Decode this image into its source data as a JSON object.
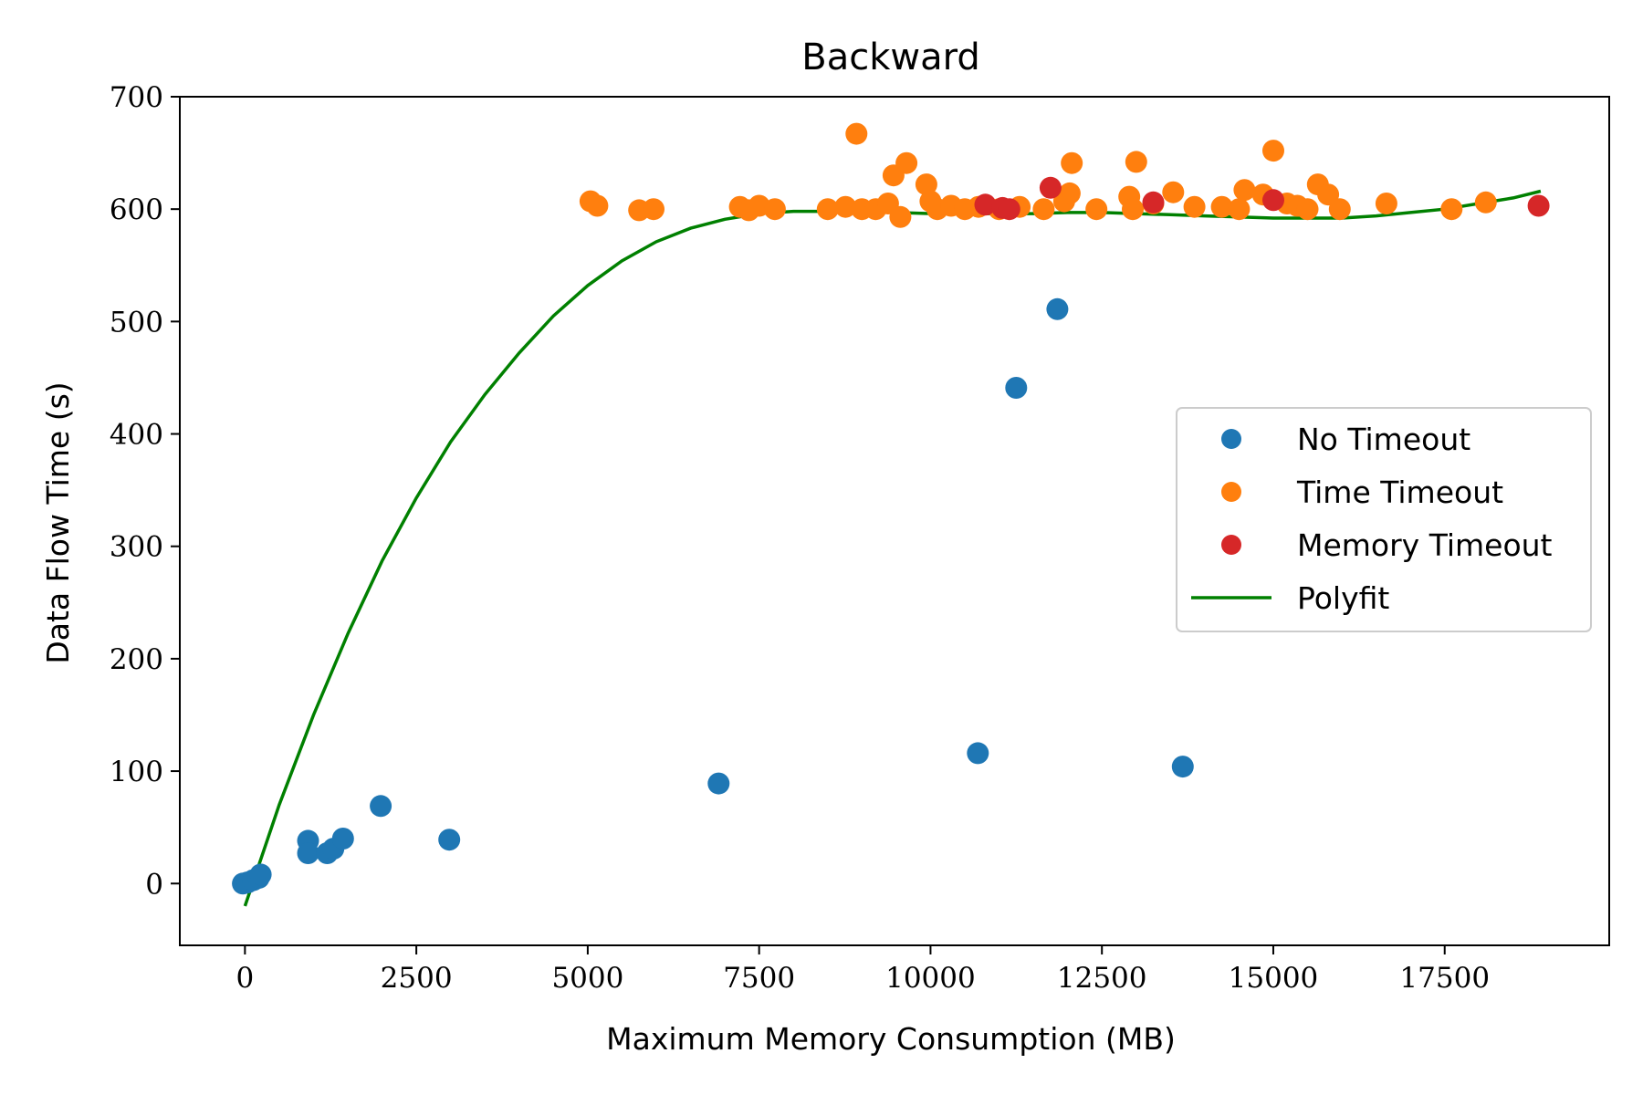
{
  "chart_data": {
    "type": "scatter",
    "title": "Backward",
    "xlabel": "Maximum Memory Consumption (MB)",
    "ylabel": "Data Flow Time (s)",
    "xlim": [
      -950,
      19900
    ],
    "ylim": [
      -55,
      700
    ],
    "xticks": [
      0,
      2500,
      5000,
      7500,
      10000,
      12500,
      15000,
      17500
    ],
    "yticks": [
      0,
      100,
      200,
      300,
      400,
      500,
      600,
      700
    ],
    "grid": false,
    "legend_position": "center-right",
    "series": [
      {
        "name": "No Timeout",
        "kind": "scatter",
        "color": "#1f77b4",
        "points": [
          [
            -30,
            0
          ],
          [
            40,
            1
          ],
          [
            120,
            3
          ],
          [
            200,
            5
          ],
          [
            230,
            8
          ],
          [
            920,
            38
          ],
          [
            920,
            27
          ],
          [
            1200,
            27
          ],
          [
            1290,
            31
          ],
          [
            1430,
            40
          ],
          [
            1980,
            69
          ],
          [
            2980,
            39
          ],
          [
            6910,
            89
          ],
          [
            10690,
            116
          ],
          [
            11250,
            441
          ],
          [
            11850,
            511
          ],
          [
            13680,
            104
          ]
        ]
      },
      {
        "name": "Time Timeout",
        "kind": "scatter",
        "color": "#ff7f0e",
        "points": [
          [
            5040,
            607
          ],
          [
            5140,
            603
          ],
          [
            5750,
            599
          ],
          [
            5960,
            600
          ],
          [
            7220,
            602
          ],
          [
            7350,
            599
          ],
          [
            7500,
            603
          ],
          [
            7730,
            600
          ],
          [
            8500,
            600
          ],
          [
            8760,
            602
          ],
          [
            8920,
            667
          ],
          [
            9000,
            600
          ],
          [
            9200,
            600
          ],
          [
            9380,
            605
          ],
          [
            9460,
            630
          ],
          [
            9560,
            593
          ],
          [
            9650,
            641
          ],
          [
            9940,
            622
          ],
          [
            10000,
            607
          ],
          [
            10100,
            600
          ],
          [
            10300,
            603
          ],
          [
            10500,
            600
          ],
          [
            10700,
            602
          ],
          [
            11000,
            600
          ],
          [
            11300,
            602
          ],
          [
            11650,
            600
          ],
          [
            11950,
            607
          ],
          [
            12030,
            614
          ],
          [
            12060,
            641
          ],
          [
            12420,
            600
          ],
          [
            12900,
            611
          ],
          [
            12950,
            600
          ],
          [
            13000,
            642
          ],
          [
            13250,
            605
          ],
          [
            13540,
            615
          ],
          [
            13850,
            602
          ],
          [
            14250,
            602
          ],
          [
            14500,
            600
          ],
          [
            14580,
            617
          ],
          [
            14850,
            613
          ],
          [
            15000,
            652
          ],
          [
            15200,
            605
          ],
          [
            15350,
            603
          ],
          [
            15500,
            600
          ],
          [
            15650,
            622
          ],
          [
            15800,
            613
          ],
          [
            15970,
            600
          ],
          [
            16650,
            605
          ],
          [
            17600,
            600
          ],
          [
            18100,
            606
          ]
        ]
      },
      {
        "name": "Memory Timeout",
        "kind": "scatter",
        "color": "#d62728",
        "points": [
          [
            10800,
            604
          ],
          [
            11050,
            601
          ],
          [
            11150,
            600
          ],
          [
            11750,
            619
          ],
          [
            13250,
            606
          ],
          [
            15000,
            608
          ],
          [
            18870,
            603
          ]
        ]
      },
      {
        "name": "Polyfit",
        "kind": "line",
        "color": "#008000",
        "points": [
          [
            0,
            -20
          ],
          [
            500,
            70
          ],
          [
            1000,
            150
          ],
          [
            1500,
            222
          ],
          [
            2000,
            287
          ],
          [
            2500,
            343
          ],
          [
            3000,
            393
          ],
          [
            3500,
            435
          ],
          [
            4000,
            472
          ],
          [
            4500,
            505
          ],
          [
            5000,
            532
          ],
          [
            5500,
            554
          ],
          [
            6000,
            571
          ],
          [
            6500,
            583
          ],
          [
            7000,
            591
          ],
          [
            7500,
            596
          ],
          [
            8000,
            598
          ],
          [
            8500,
            598
          ],
          [
            9000,
            598
          ],
          [
            9500,
            597
          ],
          [
            10000,
            596
          ],
          [
            10500,
            596
          ],
          [
            11000,
            596
          ],
          [
            11500,
            596
          ],
          [
            12000,
            597
          ],
          [
            12500,
            597
          ],
          [
            13000,
            596
          ],
          [
            13500,
            595
          ],
          [
            14000,
            594
          ],
          [
            14500,
            593
          ],
          [
            15000,
            592
          ],
          [
            15500,
            592
          ],
          [
            16000,
            592
          ],
          [
            16500,
            594
          ],
          [
            17000,
            597
          ],
          [
            17500,
            600
          ],
          [
            18000,
            605
          ],
          [
            18500,
            610
          ],
          [
            18900,
            616
          ]
        ]
      }
    ]
  }
}
